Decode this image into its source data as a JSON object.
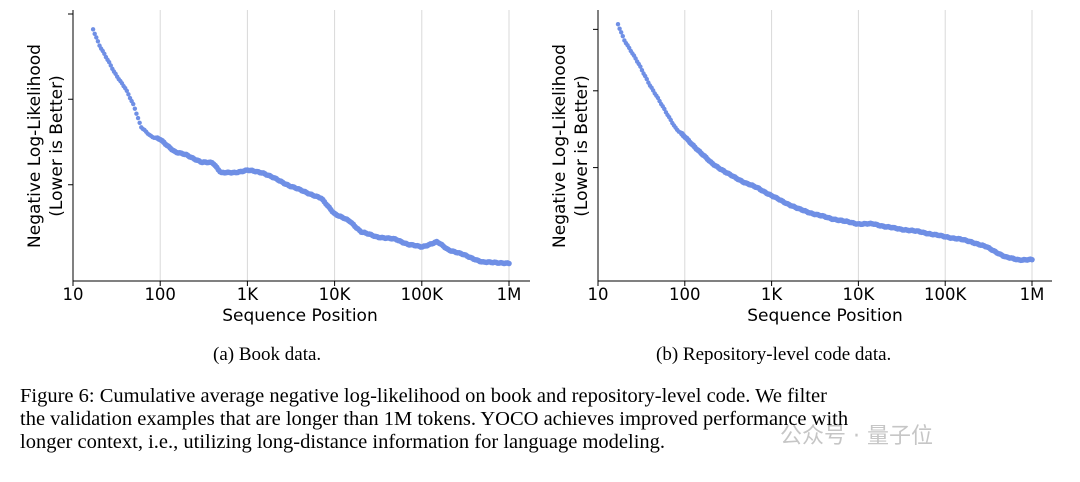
{
  "chart_data": [
    {
      "type": "scatter",
      "id": "a",
      "xlabel": "Sequence Position",
      "ylabel_line1": "Negative Log-Likelihood",
      "ylabel_line2": "(Lower is Better)",
      "xscale": "log",
      "xlim": [
        10,
        1200000
      ],
      "ylim": [
        0,
        100
      ],
      "xticks": [
        10,
        100,
        1000,
        10000,
        100000,
        1000000
      ],
      "xtick_labels": [
        "10",
        "100",
        "1K",
        "10K",
        "100K",
        "1M"
      ],
      "yticks": [
        33.3,
        66.7,
        100
      ],
      "grid": "x",
      "point_color": "#6f8fe5",
      "curve": [
        [
          17,
          94
        ],
        [
          20,
          88
        ],
        [
          25,
          82
        ],
        [
          30,
          77
        ],
        [
          40,
          71
        ],
        [
          50,
          64
        ],
        [
          60,
          56
        ],
        [
          80,
          52
        ],
        [
          100,
          51
        ],
        [
          150,
          46
        ],
        [
          200,
          45
        ],
        [
          300,
          42
        ],
        [
          400,
          42
        ],
        [
          500,
          38
        ],
        [
          700,
          38
        ],
        [
          1000,
          39
        ],
        [
          1500,
          38
        ],
        [
          2000,
          36
        ],
        [
          3000,
          33
        ],
        [
          5000,
          30
        ],
        [
          7000,
          28
        ],
        [
          10000,
          22
        ],
        [
          15000,
          19
        ],
        [
          20000,
          15
        ],
        [
          30000,
          13
        ],
        [
          50000,
          12
        ],
        [
          70000,
          10
        ],
        [
          100000,
          9
        ],
        [
          150000,
          11
        ],
        [
          200000,
          8
        ],
        [
          300000,
          6
        ],
        [
          500000,
          3
        ],
        [
          700000,
          3
        ],
        [
          1000000,
          2.5
        ]
      ]
    },
    {
      "type": "scatter",
      "id": "b",
      "xlabel": "Sequence Position",
      "ylabel_line1": "Negative Log-Likelihood",
      "ylabel_line2": "(Lower is Better)",
      "xscale": "log",
      "xlim": [
        10,
        1200000
      ],
      "ylim": [
        0,
        100
      ],
      "xticks": [
        10,
        100,
        1000,
        10000,
        100000,
        1000000
      ],
      "xtick_labels": [
        "10",
        "100",
        "1K",
        "10K",
        "100K",
        "1M"
      ],
      "yticks": [
        40,
        70,
        94
      ],
      "grid": "x",
      "point_color": "#6f8fe5",
      "curve": [
        [
          17,
          96
        ],
        [
          20,
          90
        ],
        [
          30,
          80
        ],
        [
          40,
          72
        ],
        [
          60,
          62
        ],
        [
          80,
          55
        ],
        [
          100,
          52
        ],
        [
          150,
          46
        ],
        [
          200,
          42
        ],
        [
          300,
          38
        ],
        [
          500,
          34
        ],
        [
          700,
          32
        ],
        [
          1000,
          29
        ],
        [
          1500,
          26
        ],
        [
          2000,
          24
        ],
        [
          3000,
          22
        ],
        [
          5000,
          20
        ],
        [
          7000,
          19
        ],
        [
          10000,
          18
        ],
        [
          15000,
          18
        ],
        [
          20000,
          17
        ],
        [
          30000,
          16
        ],
        [
          50000,
          15
        ],
        [
          70000,
          14
        ],
        [
          100000,
          13
        ],
        [
          150000,
          12
        ],
        [
          200000,
          11
        ],
        [
          300000,
          9
        ],
        [
          500000,
          5
        ],
        [
          700000,
          4
        ],
        [
          1000000,
          4
        ]
      ]
    }
  ],
  "subcaptions": {
    "a": "(a) Book data.",
    "b": "(b) Repository-level code data."
  },
  "caption": {
    "line1": "Figure 6: Cumulative average negative log-likelihood on book and repository-level code. We filter",
    "line2": "the validation examples that are longer than 1M tokens. YOCO achieves improved performance with",
    "line3": "longer context, i.e., utilizing long-distance information for language modeling."
  },
  "watermark": "公众号 · 量子位"
}
